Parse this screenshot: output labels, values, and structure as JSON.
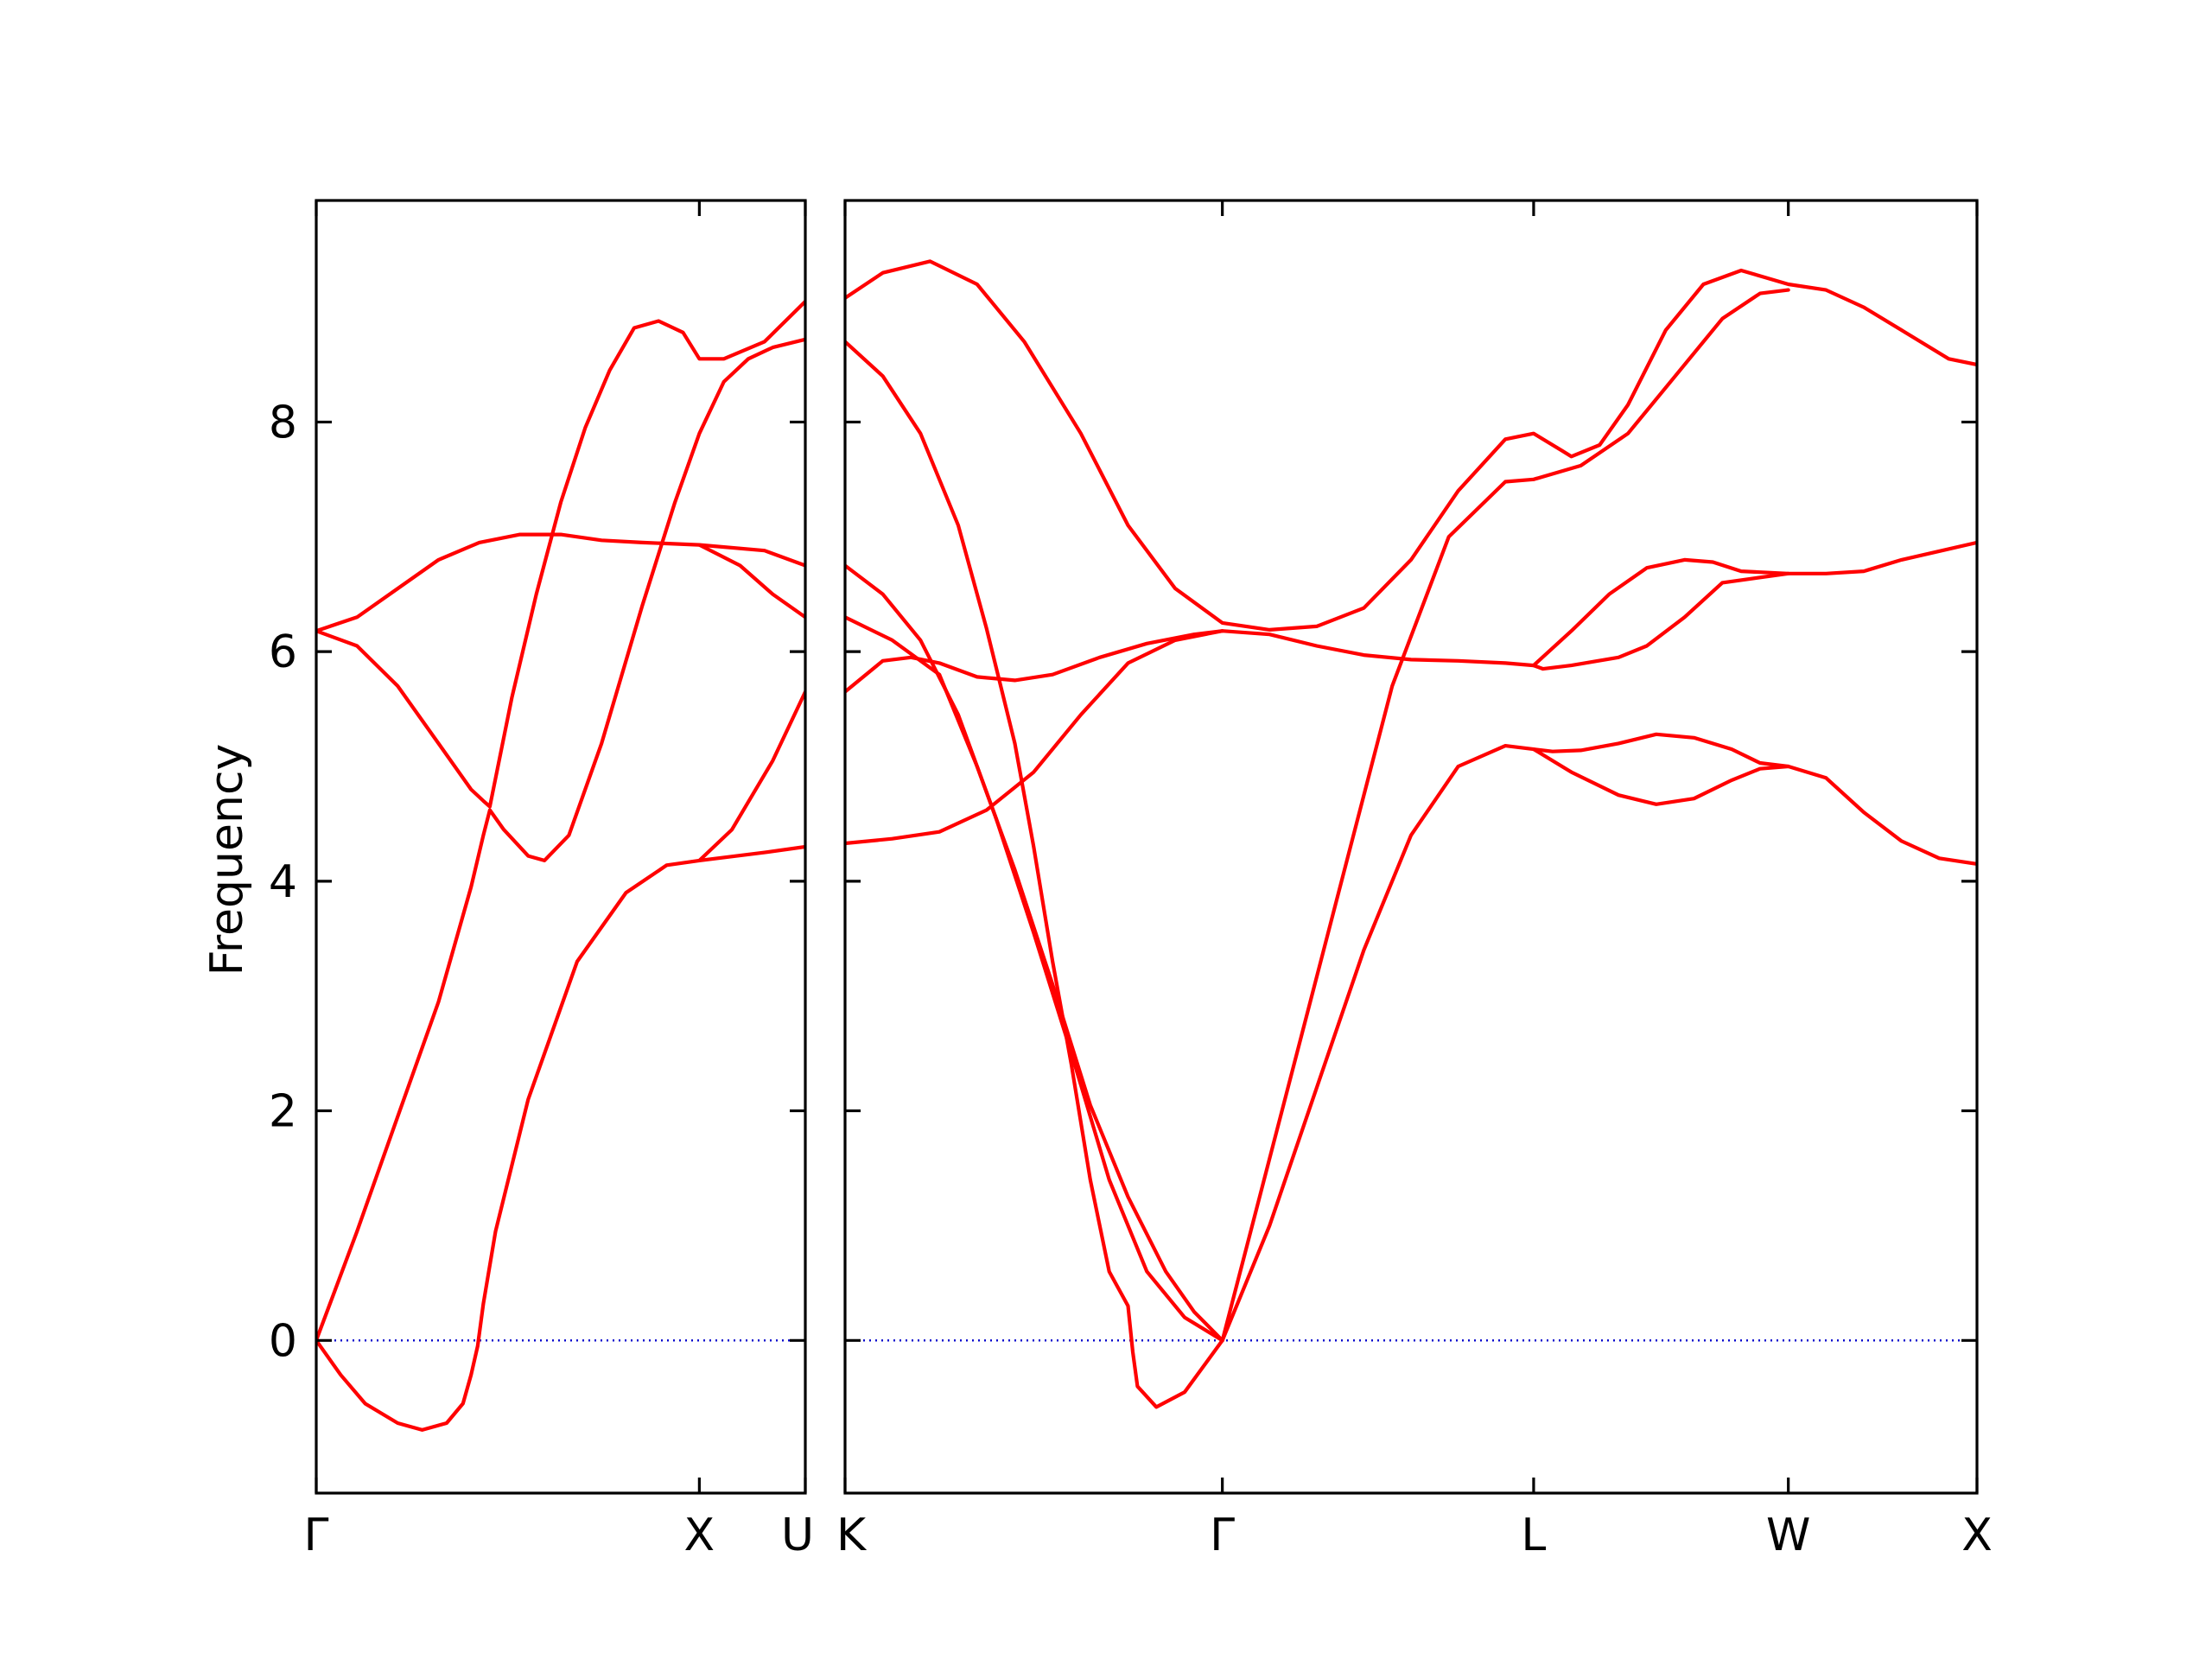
{
  "chart_data": {
    "type": "line",
    "ylabel": "Frequency",
    "xlabel": "",
    "ylim": [
      -1.33,
      9.93
    ],
    "y_ticks": [
      0,
      2,
      4,
      6,
      8
    ],
    "grid": false,
    "colors": {
      "bands": "#ff0000",
      "zero_line": "#0000cc"
    },
    "x_ticks": [
      "Γ",
      "X",
      "U",
      "K",
      "Γ",
      "L",
      "W",
      "X"
    ],
    "panels": [
      {
        "path_labels": [
          "Γ",
          "X",
          "U"
        ],
        "series": [
          {
            "values": [
              [
                0,
                0
              ],
              [
                0.03,
                -0.3
              ],
              [
                0.06,
                -0.55
              ],
              [
                0.1,
                -0.72
              ],
              [
                0.13,
                -0.78
              ],
              [
                0.16,
                -0.72
              ],
              [
                0.18,
                -0.55
              ],
              [
                0.19,
                -0.3
              ],
              [
                0.198,
                -0.05
              ],
              [
                0.205,
                0.32
              ],
              [
                0.22,
                0.95
              ],
              [
                0.26,
                2.1
              ],
              [
                0.32,
                3.3
              ],
              [
                0.38,
                3.9
              ],
              [
                0.43,
                4.14
              ],
              [
                0.47,
                4.18
              ],
              [
                0.55,
                4.25
              ],
              [
                0.6,
                4.3
              ]
            ]
          },
          {
            "values": [
              [
                0,
                0
              ],
              [
                0.05,
                0.95
              ],
              [
                0.1,
                1.95
              ],
              [
                0.15,
                2.95
              ],
              [
                0.19,
                3.95
              ],
              [
                0.205,
                4.4
              ],
              [
                0.213,
                4.62
              ],
              [
                0.23,
                4.45
              ],
              [
                0.26,
                4.22
              ],
              [
                0.28,
                4.18
              ],
              [
                0.31,
                4.4
              ],
              [
                0.35,
                5.2
              ],
              [
                0.4,
                6.4
              ],
              [
                0.44,
                7.3
              ],
              [
                0.47,
                7.9
              ],
              [
                0.5,
                8.35
              ],
              [
                0.53,
                8.55
              ],
              [
                0.56,
                8.65
              ],
              [
                0.6,
                8.72
              ]
            ]
          },
          {
            "values": [
              [
                0,
                6.18
              ],
              [
                0.05,
                6.05
              ],
              [
                0.1,
                5.7
              ],
              [
                0.15,
                5.2
              ],
              [
                0.19,
                4.8
              ],
              [
                0.205,
                4.7
              ],
              [
                0.213,
                4.65
              ],
              [
                0.24,
                5.6
              ],
              [
                0.27,
                6.5
              ],
              [
                0.3,
                7.3
              ],
              [
                0.33,
                7.95
              ],
              [
                0.36,
                8.45
              ],
              [
                0.39,
                8.82
              ],
              [
                0.42,
                8.88
              ],
              [
                0.45,
                8.78
              ],
              [
                0.47,
                8.55
              ],
              [
                0.5,
                8.55
              ],
              [
                0.55,
                8.7
              ],
              [
                0.6,
                9.05
              ]
            ]
          },
          {
            "values": [
              [
                0,
                6.18
              ],
              [
                0.05,
                6.3
              ],
              [
                0.1,
                6.55
              ],
              [
                0.15,
                6.8
              ],
              [
                0.2,
                6.95
              ],
              [
                0.25,
                7.02
              ],
              [
                0.3,
                7.02
              ],
              [
                0.35,
                6.97
              ],
              [
                0.4,
                6.95
              ],
              [
                0.47,
                6.93
              ],
              [
                0.55,
                6.88
              ],
              [
                0.6,
                6.75
              ]
            ]
          },
          {
            "values": [
              [
                0.47,
                6.93
              ],
              [
                0.52,
                6.75
              ],
              [
                0.56,
                6.5
              ],
              [
                0.6,
                6.3
              ]
            ]
          },
          {
            "values": [
              [
                0.47,
                4.18
              ],
              [
                0.51,
                4.45
              ],
              [
                0.56,
                5.05
              ],
              [
                0.6,
                5.65
              ]
            ]
          }
        ]
      },
      {
        "path_labels": [
          "K",
          "Γ",
          "L",
          "W",
          "X"
        ],
        "series": [
          {
            "values": [
              [
                0,
                9.08
              ],
              [
                0.04,
                9.3
              ],
              [
                0.09,
                9.4
              ],
              [
                0.14,
                9.2
              ],
              [
                0.19,
                8.7
              ],
              [
                0.25,
                7.9
              ],
              [
                0.3,
                7.1
              ],
              [
                0.35,
                6.55
              ],
              [
                0.4,
                6.25
              ],
              [
                0.45,
                6.19
              ],
              [
                0.5,
                6.22
              ],
              [
                0.55,
                6.38
              ],
              [
                0.6,
                6.8
              ],
              [
                0.65,
                7.4
              ],
              [
                0.7,
                7.85
              ],
              [
                0.73,
                7.9
              ],
              [
                0.76,
                7.75
              ],
              [
                0.77,
                7.7
              ],
              [
                0.8,
                7.8
              ],
              [
                0.83,
                8.15
              ],
              [
                0.87,
                8.8
              ],
              [
                0.91,
                9.2
              ],
              [
                0.95,
                9.32
              ],
              [
                1.0,
                9.2
              ],
              [
                1.04,
                9.15
              ],
              [
                1.08,
                9.0
              ],
              [
                1.12,
                8.8
              ],
              [
                1.17,
                8.55
              ],
              [
                1.2,
                8.5
              ]
            ]
          },
          {
            "values": [
              [
                0,
                8.7
              ],
              [
                0.04,
                8.4
              ],
              [
                0.08,
                7.9
              ],
              [
                0.12,
                7.1
              ],
              [
                0.15,
                6.2
              ],
              [
                0.18,
                5.2
              ],
              [
                0.2,
                4.3
              ],
              [
                0.22,
                3.3
              ],
              [
                0.24,
                2.4
              ],
              [
                0.26,
                1.4
              ],
              [
                0.28,
                0.6
              ],
              [
                0.3,
                0.3
              ],
              [
                0.305,
                -0.1
              ],
              [
                0.31,
                -0.4
              ],
              [
                0.33,
                -0.58
              ],
              [
                0.36,
                -0.45
              ],
              [
                0.4,
                0
              ]
            ]
          },
          {
            "values": [
              [
                0,
                6.75
              ],
              [
                0.04,
                6.5
              ],
              [
                0.08,
                6.1
              ],
              [
                0.12,
                5.45
              ],
              [
                0.16,
                4.55
              ],
              [
                0.2,
                3.55
              ],
              [
                0.24,
                2.5
              ],
              [
                0.28,
                1.4
              ],
              [
                0.32,
                0.6
              ],
              [
                0.36,
                0.2
              ],
              [
                0.4,
                0
              ]
            ]
          },
          {
            "values": [
              [
                0,
                6.3
              ],
              [
                0.05,
                6.1
              ],
              [
                0.1,
                5.8
              ],
              [
                0.14,
                5.0
              ],
              [
                0.18,
                4.1
              ],
              [
                0.22,
                3.1
              ],
              [
                0.26,
                2.05
              ],
              [
                0.3,
                1.25
              ],
              [
                0.34,
                0.6
              ],
              [
                0.37,
                0.25
              ],
              [
                0.4,
                0
              ]
            ]
          },
          {
            "values": [
              [
                0,
                5.65
              ],
              [
                0.04,
                5.92
              ],
              [
                0.07,
                5.95
              ],
              [
                0.1,
                5.9
              ],
              [
                0.14,
                5.78
              ],
              [
                0.18,
                5.75
              ],
              [
                0.22,
                5.8
              ],
              [
                0.27,
                5.95
              ],
              [
                0.32,
                6.07
              ],
              [
                0.37,
                6.15
              ],
              [
                0.4,
                6.18
              ],
              [
                0.45,
                6.15
              ],
              [
                0.5,
                6.05
              ],
              [
                0.55,
                5.97
              ],
              [
                0.6,
                5.93
              ],
              [
                0.65,
                5.92
              ],
              [
                0.7,
                5.9
              ],
              [
                0.73,
                5.88
              ],
              [
                0.74,
                5.85
              ],
              [
                0.77,
                5.88
              ],
              [
                0.82,
                5.95
              ],
              [
                0.85,
                6.05
              ],
              [
                0.89,
                6.3
              ],
              [
                0.93,
                6.6
              ],
              [
                1.0,
                6.68
              ],
              [
                1.04,
                6.68
              ],
              [
                1.08,
                6.7
              ],
              [
                1.12,
                6.8
              ],
              [
                1.2,
                6.95
              ]
            ]
          },
          {
            "values": [
              [
                0,
                4.33
              ],
              [
                0.05,
                4.37
              ],
              [
                0.1,
                4.43
              ],
              [
                0.15,
                4.62
              ],
              [
                0.2,
                4.95
              ],
              [
                0.25,
                5.45
              ],
              [
                0.3,
                5.9
              ],
              [
                0.35,
                6.1
              ],
              [
                0.4,
                6.18
              ]
            ]
          },
          {
            "values": [
              [
                0.4,
                0
              ],
              [
                0.45,
                1.0
              ],
              [
                0.5,
                2.2
              ],
              [
                0.55,
                3.4
              ],
              [
                0.6,
                4.4
              ],
              [
                0.65,
                5.0
              ],
              [
                0.7,
                5.18
              ],
              [
                0.73,
                5.15
              ],
              [
                0.75,
                5.13
              ],
              [
                0.78,
                5.14
              ],
              [
                0.82,
                5.2
              ],
              [
                0.86,
                5.28
              ],
              [
                0.9,
                5.25
              ],
              [
                0.94,
                5.15
              ],
              [
                0.97,
                5.03
              ],
              [
                1.0,
                5.0
              ],
              [
                1.04,
                4.9
              ],
              [
                1.08,
                4.6
              ],
              [
                1.12,
                4.35
              ],
              [
                1.16,
                4.2
              ],
              [
                1.2,
                4.15
              ]
            ]
          },
          {
            "values": [
              [
                0.4,
                0
              ],
              [
                0.46,
                1.9
              ],
              [
                0.52,
                3.8
              ],
              [
                0.58,
                5.7
              ],
              [
                0.64,
                7.0
              ],
              [
                0.7,
                7.48
              ],
              [
                0.73,
                7.5
              ],
              [
                0.78,
                7.62
              ],
              [
                0.83,
                7.9
              ],
              [
                0.88,
                8.4
              ],
              [
                0.93,
                8.9
              ],
              [
                0.97,
                9.12
              ],
              [
                1.0,
                9.15
              ]
            ]
          },
          {
            "values": [
              [
                0.73,
                5.15
              ],
              [
                0.77,
                4.95
              ],
              [
                0.82,
                4.75
              ],
              [
                0.86,
                4.67
              ],
              [
                0.9,
                4.72
              ],
              [
                0.94,
                4.88
              ],
              [
                0.97,
                4.98
              ],
              [
                1.0,
                5.0
              ]
            ]
          },
          {
            "values": [
              [
                0.73,
                5.88
              ],
              [
                0.77,
                6.18
              ],
              [
                0.81,
                6.5
              ],
              [
                0.85,
                6.73
              ],
              [
                0.89,
                6.8
              ],
              [
                0.92,
                6.78
              ],
              [
                0.95,
                6.7
              ],
              [
                1.0,
                6.68
              ]
            ]
          }
        ]
      }
    ]
  }
}
